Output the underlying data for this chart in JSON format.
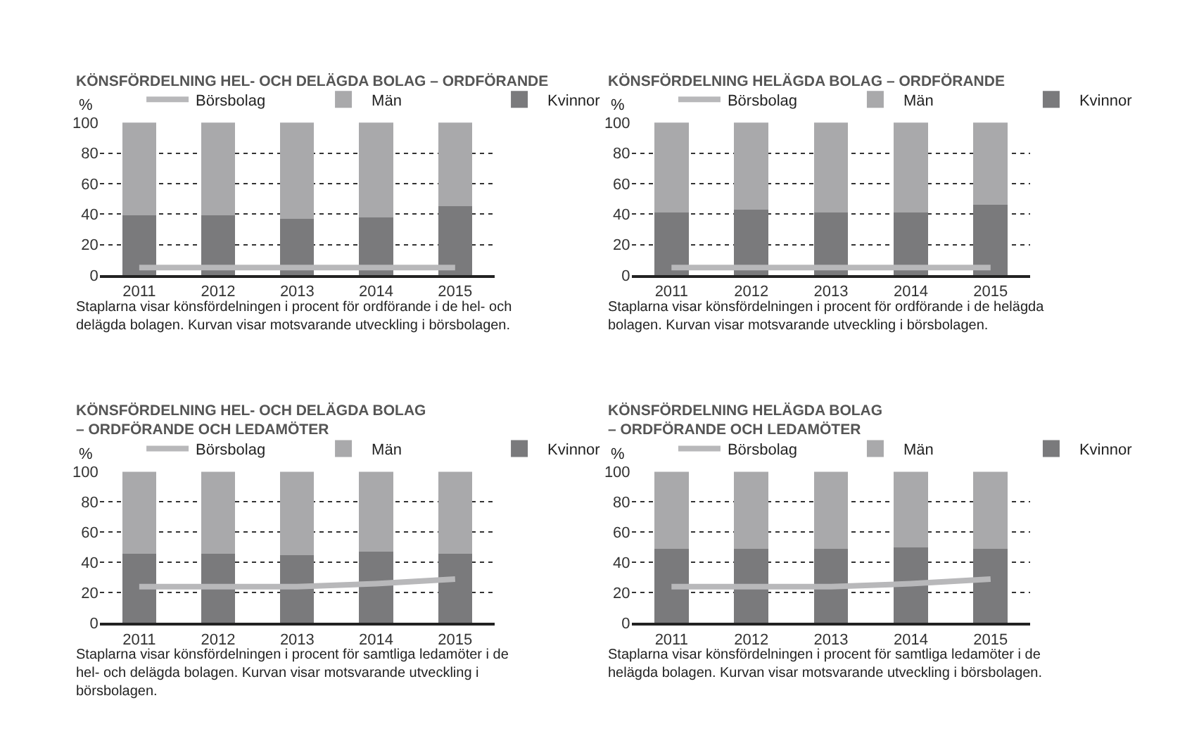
{
  "chart_data": [
    {
      "type": "bar",
      "stacked": true,
      "title": "KÖNSFÖRDELNING HEL- OCH DELÄGDA BOLAG – ORDFÖRANDE",
      "ylabel": "%",
      "categories": [
        "2011",
        "2012",
        "2013",
        "2014",
        "2015"
      ],
      "ylim": [
        0,
        100
      ],
      "yticks": [
        0,
        20,
        40,
        60,
        80,
        100
      ],
      "grid": "y",
      "legend": "top",
      "annotations": [
        "Staplarna visar könsfördelningen i procent för ordförande i de hel- och delägda bolagen. Kurvan visar motsvarande utveckling i börsbolagen."
      ],
      "series": [
        {
          "name": "Kvinnor",
          "color": "#7a7a7c",
          "values": [
            39,
            39,
            37,
            38,
            45
          ]
        },
        {
          "name": "Män",
          "color": "#a9a9ab",
          "values": [
            61,
            61,
            63,
            62,
            55
          ]
        },
        {
          "name": "Börsbolag",
          "type": "line",
          "color": "#b8b8ba",
          "values": [
            5,
            5,
            5,
            5,
            5
          ]
        }
      ]
    },
    {
      "type": "bar",
      "stacked": true,
      "title": "KÖNSFÖRDELNING HELÄGDA BOLAG – ORDFÖRANDE",
      "ylabel": "%",
      "categories": [
        "2011",
        "2012",
        "2013",
        "2014",
        "2015"
      ],
      "ylim": [
        0,
        100
      ],
      "yticks": [
        0,
        20,
        40,
        60,
        80,
        100
      ],
      "grid": "y",
      "legend": "top",
      "annotations": [
        "Staplarna visar könsfördelningen i procent för ordförande i de helägda bolagen. Kurvan visar motsvarande utveckling i börsbolagen."
      ],
      "series": [
        {
          "name": "Kvinnor",
          "color": "#7a7a7c",
          "values": [
            41,
            43,
            41,
            41,
            46
          ]
        },
        {
          "name": "Män",
          "color": "#a9a9ab",
          "values": [
            59,
            57,
            59,
            59,
            54
          ]
        },
        {
          "name": "Börsbolag",
          "type": "line",
          "color": "#b8b8ba",
          "values": [
            5,
            5,
            5,
            5,
            5
          ]
        }
      ]
    },
    {
      "type": "bar",
      "stacked": true,
      "title": "KÖNSFÖRDELNING HEL- OCH DELÄGDA BOLAG\n– ORDFÖRANDE OCH LEDAMÖTER",
      "ylabel": "%",
      "categories": [
        "2011",
        "2012",
        "2013",
        "2014",
        "2015"
      ],
      "ylim": [
        0,
        100
      ],
      "yticks": [
        0,
        20,
        40,
        60,
        80,
        100
      ],
      "grid": "y",
      "legend": "top",
      "annotations": [
        "Staplarna visar könsfördelningen i procent för samtliga ledamöter i de hel- och delägda bolagen. Kurvan visar motsvarande utveckling i börsbolagen."
      ],
      "series": [
        {
          "name": "Kvinnor",
          "color": "#7a7a7c",
          "values": [
            46,
            46,
            45,
            47,
            46
          ]
        },
        {
          "name": "Män",
          "color": "#a9a9ab",
          "values": [
            54,
            54,
            55,
            53,
            54
          ]
        },
        {
          "name": "Börsbolag",
          "type": "line",
          "color": "#b8b8ba",
          "values": [
            24,
            24,
            24,
            26,
            29
          ]
        }
      ]
    },
    {
      "type": "bar",
      "stacked": true,
      "title": "KÖNSFÖRDELNING HELÄGDA BOLAG\n– ORDFÖRANDE OCH LEDAMÖTER",
      "ylabel": "%",
      "categories": [
        "2011",
        "2012",
        "2013",
        "2014",
        "2015"
      ],
      "ylim": [
        0,
        100
      ],
      "yticks": [
        0,
        20,
        40,
        60,
        80,
        100
      ],
      "grid": "y",
      "legend": "top",
      "annotations": [
        "Staplarna visar könsfördelningen i procent för samtliga ledamöter i de helägda bolagen. Kurvan visar motsvarande utveckling i börsbolagen."
      ],
      "series": [
        {
          "name": "Kvinnor",
          "color": "#7a7a7c",
          "values": [
            49,
            49,
            49,
            50,
            49
          ]
        },
        {
          "name": "Män",
          "color": "#a9a9ab",
          "values": [
            51,
            51,
            51,
            50,
            51
          ]
        },
        {
          "name": "Börsbolag",
          "type": "line",
          "color": "#b8b8ba",
          "values": [
            24,
            24,
            24,
            26,
            29
          ]
        }
      ]
    }
  ]
}
